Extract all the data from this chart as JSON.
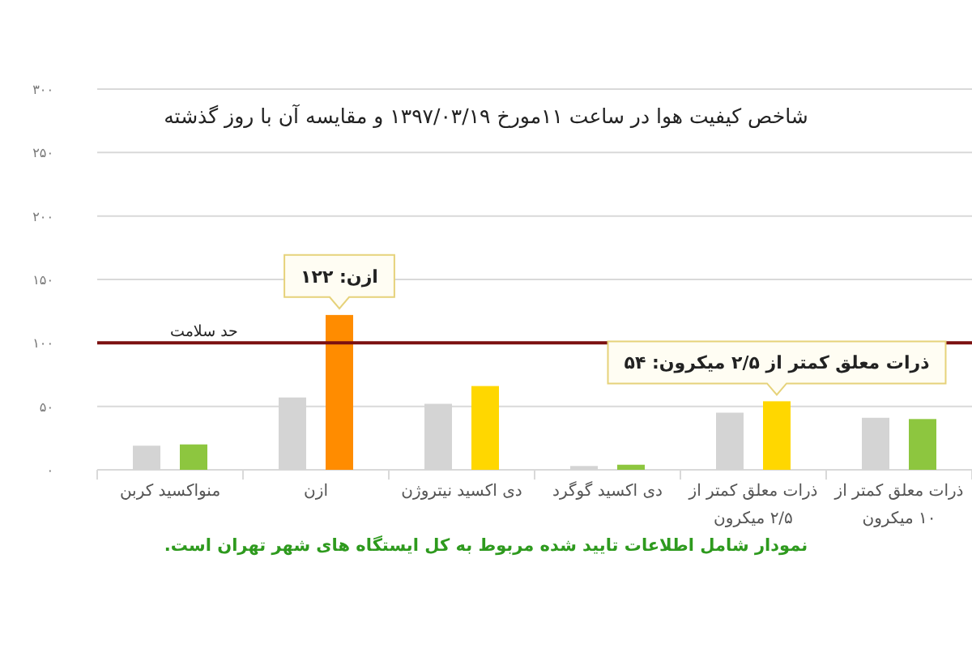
{
  "chart_data": {
    "type": "bar",
    "title": "شاخص کیفیت هوا در ساعت ۱۱مورخ ۱۳۹۷/۰۳/۱۹ و مقایسه آن با روز گذشته",
    "categories": [
      "منواکسید کربن",
      "ازن",
      "دی اکسید نیتروژن",
      "دی اکسید گوگرد",
      "ذرات معلق کمتر از ۲/۵ میکرون",
      "ذرات معلق کمتر از ۱۰ میکرون"
    ],
    "series": [
      {
        "color": "#d4d4d4",
        "values": [
          19,
          57,
          52,
          3,
          45,
          41
        ]
      },
      {
        "colors": [
          "#8dc63f",
          "#ff8c00",
          "#ffd700",
          "#8dc63f",
          "#ffd700",
          "#8dc63f"
        ],
        "values": [
          20,
          122,
          66,
          4,
          54,
          40
        ]
      }
    ],
    "ylim": [
      0,
      300
    ],
    "yticks": [
      {
        "value": 0,
        "label": "۰"
      },
      {
        "value": 50,
        "label": "۵۰"
      },
      {
        "value": 100,
        "label": "۱۰۰"
      },
      {
        "value": 150,
        "label": "۱۵۰"
      },
      {
        "value": 200,
        "label": "۲۰۰"
      },
      {
        "value": 250,
        "label": "۲۵۰"
      },
      {
        "value": 300,
        "label": "۳۰۰"
      }
    ],
    "grid": "y",
    "ref_lines": [
      {
        "axis": "y",
        "value": 100,
        "label": "حد سلامت",
        "color": "#7b1010"
      }
    ],
    "annotations": [
      "ازن: ۱۲۲",
      "ذرات معلق کمتر از ۲/۵ میکرون: ۵۴",
      "نمودار شامل اطلاعات تایید شده مربوط به کل ایستگاه های شهر تهران است."
    ]
  }
}
